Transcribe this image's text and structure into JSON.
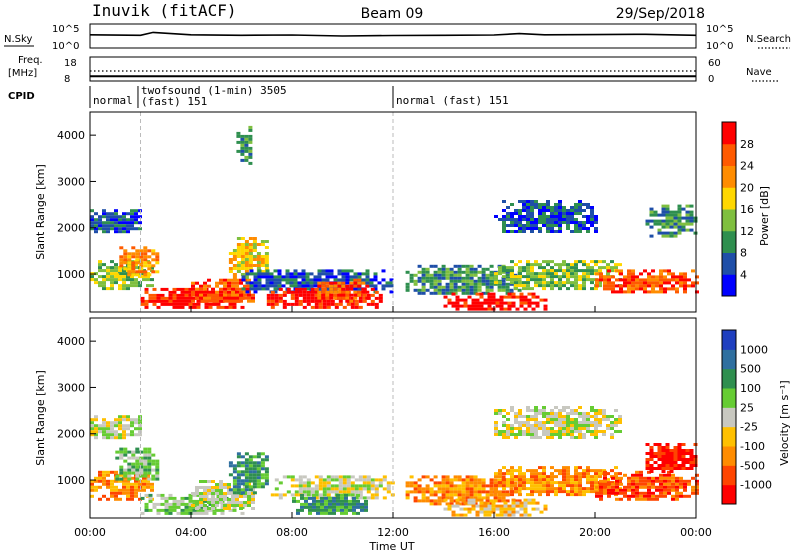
{
  "header": {
    "station": "Inuvik (fitACF)",
    "beam": "Beam 09",
    "date": "29/Sep/2018"
  },
  "noise_panel": {
    "left_label": "N.Sky",
    "left_ticks": [
      "10^5",
      "10^0"
    ],
    "right_ticks": [
      "10^5",
      "10^0"
    ],
    "right_label": "N.Search"
  },
  "freq_panel": {
    "left_label_1": "Freq.",
    "left_label_2": "[MHz]",
    "left_ticks": [
      "18",
      "8"
    ],
    "right_ticks": [
      "60",
      "0"
    ],
    "right_label": "Nave"
  },
  "cpid_panel": {
    "label": "CPID",
    "segments": [
      {
        "start_hour": 0,
        "end_hour": 1.9,
        "label": "normal",
        "label2": ""
      },
      {
        "start_hour": 1.9,
        "end_hour": 12.0,
        "label": "twofsound (1-min) 3505",
        "label2": "(fast) 151"
      },
      {
        "start_hour": 12.0,
        "end_hour": 24.0,
        "label": "normal (fast) 151",
        "label2": ""
      }
    ]
  },
  "x_axis": {
    "label": "Time UT",
    "ticks": [
      "00:00",
      "04:00",
      "08:00",
      "12:00",
      "16:00",
      "20:00",
      "00:00"
    ]
  },
  "power_panel": {
    "ylabel": "Slant Range [km]",
    "yticks": [
      "1000",
      "2000",
      "3000",
      "4000"
    ],
    "colorbar_label": "Power [dB]",
    "colorbar_ticks": [
      "4",
      "8",
      "12",
      "16",
      "20",
      "24",
      "28"
    ],
    "colors": [
      "#0000ff",
      "#1f4fa8",
      "#2f8f4f",
      "#7fbf3f",
      "#ffd700",
      "#ff8c00",
      "#ff5a00",
      "#ff0000"
    ]
  },
  "velocity_panel": {
    "ylabel": "Slant Range [km]",
    "yticks": [
      "1000",
      "2000",
      "3000",
      "4000"
    ],
    "colorbar_label": "Velocity [m s⁻¹]",
    "colorbar_ticks": [
      "1000",
      "500",
      "100",
      "25",
      "-25",
      "-100",
      "-500",
      "-1000"
    ],
    "colors": [
      "#1f3fbf",
      "#2f6f9f",
      "#2f8f4f",
      "#66cc33",
      "#c8c8c0",
      "#ffc000",
      "#ff8c00",
      "#ff4500",
      "#ff0000"
    ]
  },
  "chart_data": [
    {
      "type": "line",
      "name_left": "N.Sky",
      "name_right": "N.Search",
      "x": [
        0,
        2,
        2.5,
        4,
        6,
        8,
        10,
        12,
        14,
        16,
        17,
        18,
        20,
        22,
        24
      ],
      "y_level": [
        0.45,
        0.47,
        0.35,
        0.45,
        0.47,
        0.46,
        0.5,
        0.48,
        0.47,
        0.46,
        0.4,
        0.45,
        0.44,
        0.43,
        0.47
      ]
    },
    {
      "type": "line",
      "name_left": "Freq.",
      "name_right": "Nave",
      "x": [
        0,
        24
      ],
      "freq_mhz": [
        10,
        10
      ],
      "nave": [
        25,
        25
      ]
    },
    {
      "type": "heatmap",
      "quantity": "Power",
      "xrange_hours": [
        0,
        24
      ],
      "yrange_km": [
        180,
        4500
      ],
      "clusters": [
        {
          "t0": 0.0,
          "t1": 2.5,
          "r0": 700,
          "r1": 1300,
          "level": 3
        },
        {
          "t0": 0.0,
          "t1": 2.0,
          "r0": 1900,
          "r1": 2400,
          "level": 1
        },
        {
          "t0": 1.0,
          "t1": 2.6,
          "r0": 1000,
          "r1": 1600,
          "level": 5
        },
        {
          "t0": 2.0,
          "t1": 6.0,
          "r0": 250,
          "r1": 700,
          "level": 7
        },
        {
          "t0": 4.0,
          "t1": 6.5,
          "r0": 400,
          "r1": 900,
          "level": 6
        },
        {
          "t0": 5.5,
          "t1": 7.0,
          "r0": 900,
          "r1": 1800,
          "level": 4
        },
        {
          "t0": 6.0,
          "t1": 12.0,
          "r0": 600,
          "r1": 1100,
          "level": 1
        },
        {
          "t0": 7.0,
          "t1": 11.5,
          "r0": 250,
          "r1": 700,
          "level": 7
        },
        {
          "t0": 9.0,
          "t1": 11.0,
          "r0": 400,
          "r1": 900,
          "level": 6
        },
        {
          "t0": 12.5,
          "t1": 17.0,
          "r0": 600,
          "r1": 1200,
          "level": 2
        },
        {
          "t0": 14.0,
          "t1": 18.0,
          "r0": 250,
          "r1": 600,
          "level": 7
        },
        {
          "t0": 16.0,
          "t1": 21.0,
          "r0": 700,
          "r1": 1300,
          "level": 3
        },
        {
          "t0": 20.0,
          "t1": 24.0,
          "r0": 600,
          "r1": 1100,
          "level": 6
        },
        {
          "t0": 22.0,
          "t1": 24.0,
          "r0": 1800,
          "r1": 2500,
          "level": 2
        },
        {
          "t0": 16.0,
          "t1": 20.0,
          "r0": 1900,
          "r1": 2600,
          "level": 1
        },
        {
          "t0": 5.8,
          "t1": 6.4,
          "r0": 3400,
          "r1": 4200,
          "level": 2
        }
      ]
    },
    {
      "type": "heatmap",
      "quantity": "Velocity",
      "xrange_hours": [
        0,
        24
      ],
      "yrange_km": [
        180,
        4500
      ],
      "clusters": [
        {
          "t0": 0.0,
          "t1": 2.5,
          "r0": 600,
          "r1": 1200,
          "level": 6
        },
        {
          "t0": 0.0,
          "t1": 2.0,
          "r0": 1900,
          "r1": 2400,
          "level": 4
        },
        {
          "t0": 1.0,
          "t1": 2.6,
          "r0": 1000,
          "r1": 1700,
          "level": 3
        },
        {
          "t0": 2.0,
          "t1": 6.0,
          "r0": 250,
          "r1": 700,
          "level": 3
        },
        {
          "t0": 4.0,
          "t1": 6.5,
          "r0": 400,
          "r1": 1000,
          "level": 4
        },
        {
          "t0": 5.5,
          "t1": 7.0,
          "r0": 700,
          "r1": 1600,
          "level": 2
        },
        {
          "t0": 7.0,
          "t1": 12.0,
          "r0": 600,
          "r1": 1100,
          "level": 4
        },
        {
          "t0": 8.0,
          "t1": 11.0,
          "r0": 250,
          "r1": 700,
          "level": 2
        },
        {
          "t0": 12.5,
          "t1": 17.0,
          "r0": 500,
          "r1": 1100,
          "level": 6
        },
        {
          "t0": 14.0,
          "t1": 18.0,
          "r0": 250,
          "r1": 600,
          "level": 5
        },
        {
          "t0": 16.0,
          "t1": 21.0,
          "r0": 700,
          "r1": 1300,
          "level": 6
        },
        {
          "t0": 20.0,
          "t1": 24.0,
          "r0": 600,
          "r1": 1200,
          "level": 7
        },
        {
          "t0": 22.0,
          "t1": 24.0,
          "r0": 1200,
          "r1": 1800,
          "level": 8
        },
        {
          "t0": 16.0,
          "t1": 21.0,
          "r0": 1900,
          "r1": 2600,
          "level": 4
        }
      ]
    }
  ]
}
